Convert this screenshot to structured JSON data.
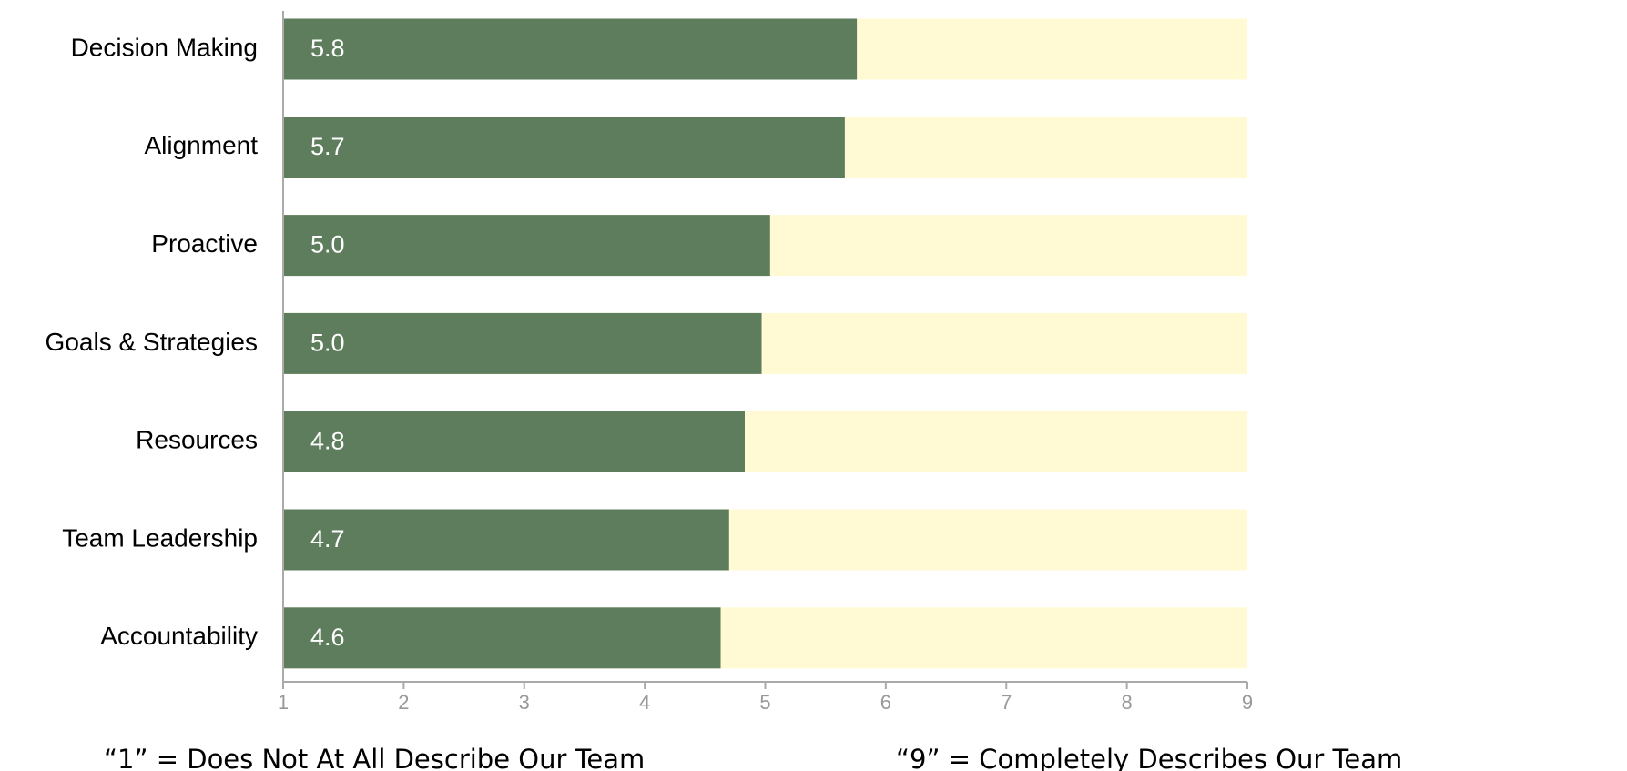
{
  "chart_data": {
    "type": "barh",
    "categories": [
      "Decision Making",
      "Alignment",
      "Proactive",
      "Goals & Strategies",
      "Resources",
      "Team Leadership",
      "Accountability"
    ],
    "values": [
      5.76,
      5.66,
      5.04,
      4.97,
      4.83,
      4.7,
      4.63
    ],
    "value_labels": [
      "5.8",
      "5.7",
      "5.0",
      "5.0",
      "4.8",
      "4.7",
      "4.6"
    ],
    "color": "#5e7d5c",
    "track_color": "#fffad4",
    "xlim": [
      1,
      9
    ],
    "xticks": [
      1,
      2,
      3,
      4,
      5,
      6,
      7,
      8,
      9
    ],
    "annotations": [
      "“1” = Does Not At All Describe Our Team",
      "“9” = Completely Describes Our Team"
    ]
  }
}
